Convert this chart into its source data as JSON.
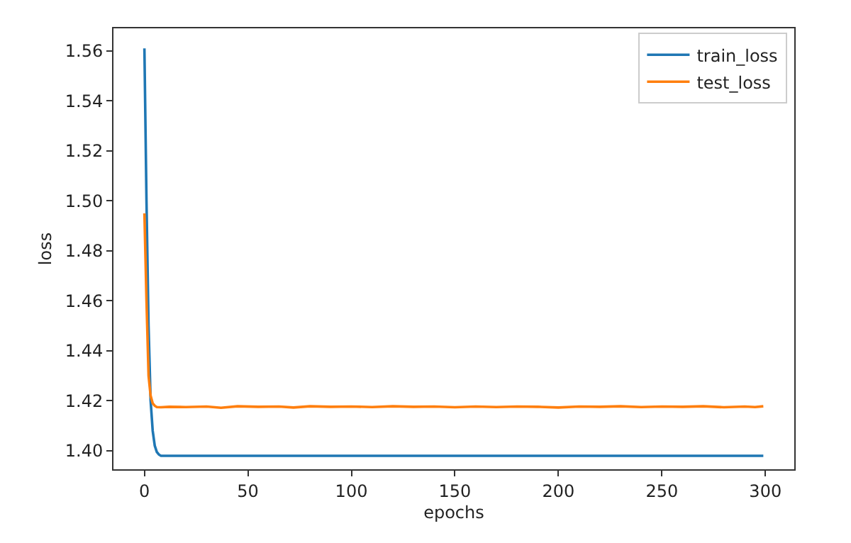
{
  "chart_data": {
    "type": "line",
    "xlabel": "epochs",
    "ylabel": "loss",
    "xlim": [
      -14.95,
      313.95
    ],
    "xticks": [
      0,
      50,
      100,
      150,
      200,
      250,
      300
    ],
    "ylim": [
      1.3926,
      1.569
    ],
    "yticks": [
      {
        "value": 1.4,
        "label": "1.40"
      },
      {
        "value": 1.42,
        "label": "1.42"
      },
      {
        "value": 1.44,
        "label": "1.44"
      },
      {
        "value": 1.46,
        "label": "1.46"
      },
      {
        "value": 1.48,
        "label": "1.48"
      },
      {
        "value": 1.5,
        "label": "1.50"
      },
      {
        "value": 1.52,
        "label": "1.52"
      },
      {
        "value": 1.54,
        "label": "1.54"
      },
      {
        "value": 1.56,
        "label": "1.56"
      }
    ],
    "grid": false,
    "legend": "top right",
    "marker": "none",
    "line_style": "solid",
    "series": [
      {
        "name": "train_loss",
        "color": "#1f77b4",
        "x": [
          0,
          1,
          2,
          3,
          4,
          5,
          6,
          7,
          8,
          10,
          20,
          50,
          100,
          150,
          200,
          250,
          299
        ],
        "values": [
          1.561,
          1.5,
          1.45,
          1.42,
          1.408,
          1.402,
          1.3995,
          1.3985,
          1.398,
          1.398,
          1.398,
          1.398,
          1.398,
          1.398,
          1.398,
          1.398,
          1.398
        ]
      },
      {
        "name": "test_loss",
        "color": "#ff7f0e",
        "x": [
          0,
          1,
          2,
          3,
          4,
          5,
          6,
          8,
          12,
          20,
          30,
          37,
          45,
          55,
          65,
          72,
          80,
          90,
          100,
          110,
          120,
          130,
          140,
          150,
          160,
          170,
          180,
          190,
          200,
          210,
          220,
          230,
          240,
          250,
          260,
          270,
          280,
          290,
          295,
          299
        ],
        "values": [
          1.495,
          1.46,
          1.43,
          1.422,
          1.419,
          1.418,
          1.4175,
          1.4174,
          1.4176,
          1.4175,
          1.4177,
          1.4172,
          1.4178,
          1.4176,
          1.4177,
          1.4173,
          1.4178,
          1.4176,
          1.4177,
          1.4175,
          1.4178,
          1.4176,
          1.4177,
          1.4174,
          1.4177,
          1.4175,
          1.4177,
          1.4176,
          1.4173,
          1.4177,
          1.4176,
          1.4178,
          1.4175,
          1.4177,
          1.4176,
          1.4178,
          1.4174,
          1.4177,
          1.4175,
          1.4178
        ]
      }
    ]
  }
}
